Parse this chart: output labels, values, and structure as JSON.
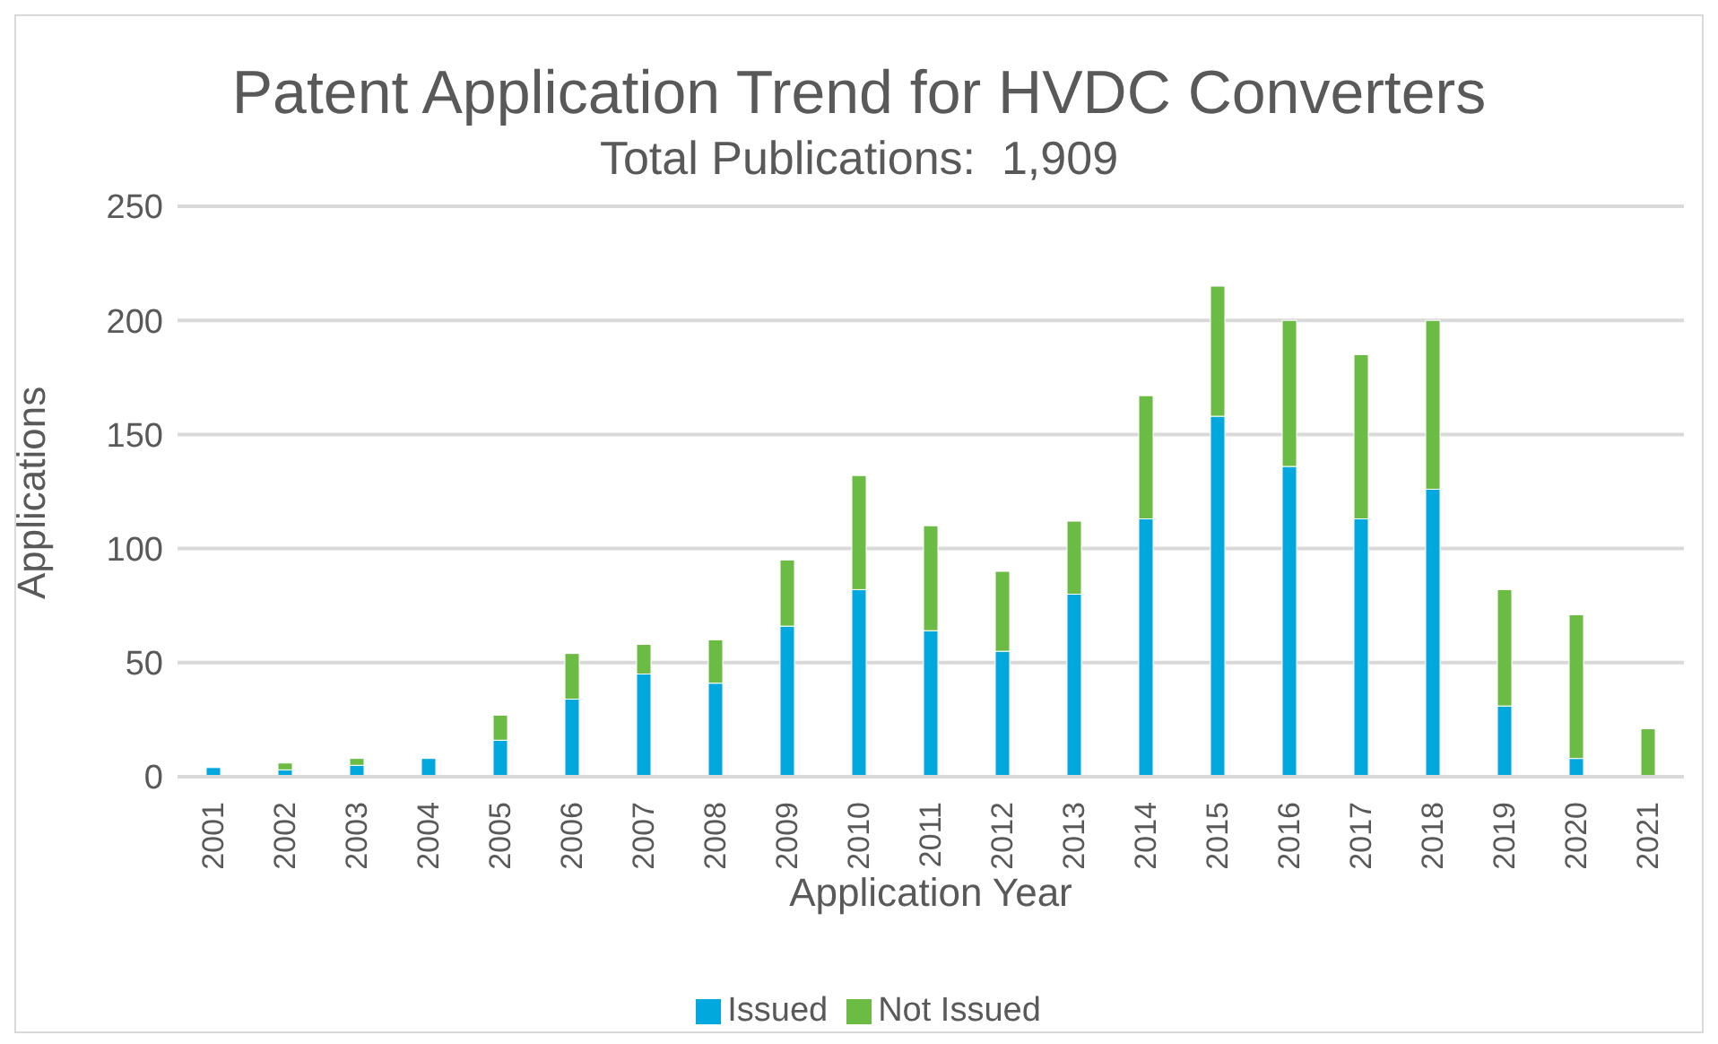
{
  "chart_data": {
    "type": "bar",
    "title": "Patent Application Trend for HVDC Converters",
    "subtitle": "Total Publications:  1,909",
    "xlabel": "Application Year",
    "ylabel": "Applications",
    "categories": [
      "2001",
      "2002",
      "2003",
      "2004",
      "2005",
      "2006",
      "2007",
      "2008",
      "2009",
      "2010",
      "2011",
      "2012",
      "2013",
      "2014",
      "2015",
      "2016",
      "2017",
      "2018",
      "2019",
      "2020",
      "2021"
    ],
    "series": [
      {
        "name": "Issued",
        "color": "#00a8de",
        "values": [
          4,
          3,
          5,
          8,
          16,
          34,
          45,
          41,
          66,
          82,
          64,
          55,
          80,
          113,
          158,
          136,
          113,
          126,
          31,
          8,
          0
        ]
      },
      {
        "name": "Not Issued",
        "color": "#6cbb44",
        "values": [
          0,
          3,
          3,
          0,
          11,
          20,
          13,
          19,
          29,
          50,
          46,
          35,
          32,
          54,
          57,
          64,
          72,
          74,
          51,
          63,
          21
        ]
      }
    ],
    "stacked": true,
    "ylim": [
      0,
      250
    ],
    "yticks": [
      0,
      50,
      100,
      150,
      200,
      250
    ],
    "grid": "y",
    "legend": "bottom"
  }
}
